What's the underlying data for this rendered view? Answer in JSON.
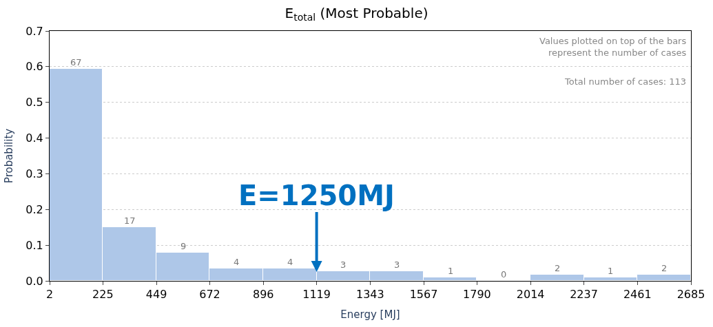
{
  "chart_data": {
    "type": "histogram",
    "title": "E$_{total}$ (Most Probable)",
    "xlabel": "Energy [MJ]",
    "ylabel": "Probability",
    "bins": [
      2,
      225,
      449,
      672,
      896,
      1119,
      1343,
      1567,
      1790,
      2014,
      2237,
      2461,
      2685
    ],
    "values": [
      0.593,
      0.15,
      0.08,
      0.035,
      0.035,
      0.027,
      0.027,
      0.009,
      0,
      0.018,
      0.009,
      0.018
    ],
    "color": "#aec7e8",
    "xlim": [
      2,
      2685
    ],
    "xticks": [
      2,
      225,
      449,
      672,
      896,
      1119,
      1343,
      1567,
      1790,
      2014,
      2237,
      2461,
      2685
    ],
    "ylim": [
      0,
      0.7
    ],
    "yticks": [
      {
        "value": 0,
        "label": "0.0"
      },
      0.1,
      0.2,
      0.3,
      0.4,
      0.5,
      0.6,
      0.7
    ],
    "grid": "y",
    "annotations": [
      "Values plotted on top of the bars\nrepresent the number of cases",
      "Total number of cases: 113",
      {
        "text": "67",
        "x": 113.5,
        "y": 0.593
      },
      {
        "text": "17",
        "x": 337,
        "y": 0.15
      },
      {
        "text": "9",
        "x": 560.5,
        "y": 0.08
      },
      {
        "text": "4",
        "x": 784,
        "y": 0.035
      },
      {
        "text": "4",
        "x": 1007.5,
        "y": 0.035
      },
      {
        "text": "3",
        "x": 1231,
        "y": 0.027
      },
      {
        "text": "3",
        "x": 1455,
        "y": 0.027
      },
      {
        "text": "1",
        "x": 1678.5,
        "y": 0.009
      },
      {
        "text": "0",
        "x": 1902,
        "y": 0
      },
      {
        "text": "2",
        "x": 2125.5,
        "y": 0.018
      },
      {
        "text": "1",
        "x": 2349,
        "y": 0.009
      },
      {
        "text": "2",
        "x": 2573,
        "y": 0.018
      },
      {
        "text": "E=1250MJ",
        "x": 1119,
        "y": 0.025
      }
    ]
  }
}
